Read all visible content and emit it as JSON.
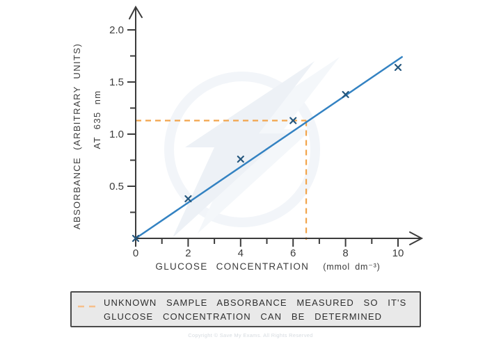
{
  "chart_data": {
    "type": "scatter",
    "title": "",
    "xlabel": "GLUCOSE CONCENTRATION",
    "xlabel_units": "(mmol dm⁻³)",
    "ylabel_line1": "ABSORBANCE (ARBITRARY UNITS)",
    "ylabel_line2": "AT 635 nm",
    "xlim": [
      0,
      10.8
    ],
    "ylim": [
      0,
      2.2
    ],
    "grid": false,
    "x_ticks": [
      0,
      2,
      4,
      6,
      8,
      10
    ],
    "x_tick_labels": [
      "0",
      "2",
      "4",
      "6",
      "8",
      "10"
    ],
    "x_minor_ticks": [
      1,
      3,
      5,
      7,
      9
    ],
    "y_ticks": [
      0.5,
      1.0,
      1.5,
      2.0
    ],
    "y_tick_labels": [
      "0.5",
      "1.0",
      "1.5",
      "2.0"
    ],
    "y_minor_ticks": [
      0.25,
      0.75,
      1.25,
      1.75
    ],
    "points": [
      [
        0,
        0
      ],
      [
        2,
        0.38
      ],
      [
        4,
        0.76
      ],
      [
        6,
        1.13
      ],
      [
        8,
        1.38
      ],
      [
        10,
        1.64
      ]
    ],
    "fit_line": {
      "x1": 0,
      "y1": 0,
      "x2": 10.15,
      "y2": 1.74
    },
    "guide": {
      "absorbance": 1.13,
      "concentration": 6.5
    },
    "colors": {
      "fit_line": "#3382c2",
      "marker": "#24577e",
      "guide": "#f2a44a",
      "axis": "#3b3b3b",
      "legend_swatch": "#f6bf8a",
      "watermark": "#edf1f6"
    }
  },
  "legend": {
    "line1": "UNKNOWN SAMPLE ABSORBANCE MEASURED SO IT'S",
    "line2": "GLUCOSE CONCENTRATION CAN BE DETERMINED"
  },
  "footer": {
    "copyright": "Copyright © Save My Exams. All Rights Reserved"
  },
  "icons": {
    "watermark": "save-my-exams-lightning-bolt-watermark",
    "legend_swatch": "orange-dashed-line-swatch"
  }
}
